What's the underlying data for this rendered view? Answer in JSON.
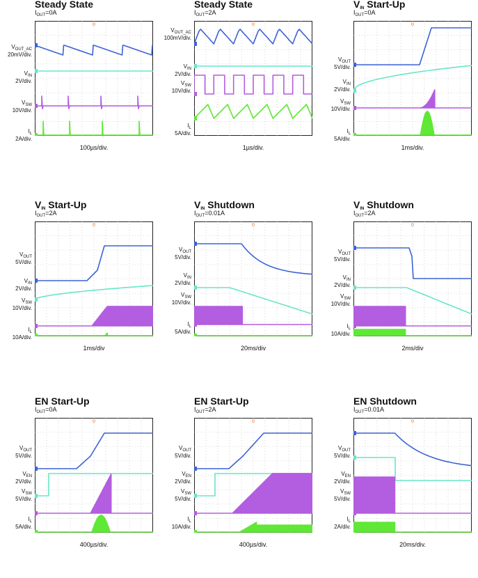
{
  "colors": {
    "vout": "#3c63d6",
    "vin": "#66e6c8",
    "vsw": "#b35de0",
    "il": "#5fe835",
    "grid": "#b8b8b8",
    "trigger": "#e8742a"
  },
  "panels": [
    {
      "title": "Steady State",
      "subtitle": "I<sub>OUT</sub>=0A",
      "xlabel": "100µs/div.",
      "channels": [
        {
          "name": "V<sub>OUT_AC</sub>",
          "scale": "20mV/div.",
          "ch": "vout"
        },
        {
          "name": "V<sub>IN</sub>",
          "scale": "2V/div.",
          "ch": "vin"
        },
        {
          "name": "V<sub>SW</sub>",
          "scale": "10V/div.",
          "ch": "vsw"
        },
        {
          "name": "I<sub>L</sub>",
          "scale": "2A/div.",
          "ch": "il"
        }
      ]
    },
    {
      "title": "Steady State",
      "subtitle": "I<sub>OUT</sub>=2A",
      "xlabel": "1µs/div.",
      "channels": [
        {
          "name": "V<sub>OUT_AC</sub>",
          "scale": "100mV/div.",
          "ch": "vout"
        },
        {
          "name": "V<sub>IN</sub>",
          "scale": "2V/div.",
          "ch": "vin"
        },
        {
          "name": "V<sub>SW</sub>",
          "scale": "10V/div.",
          "ch": "vsw"
        },
        {
          "name": "I<sub>L</sub>",
          "scale": "5A/div.",
          "ch": "il"
        }
      ]
    },
    {
      "title": "V<sub>IN</sub> Start-Up",
      "subtitle": "I<sub>OUT</sub>=0A",
      "xlabel": "1ms/div.",
      "channels": [
        {
          "name": "V<sub>OUT</sub>",
          "scale": "5V/div.",
          "ch": "vout"
        },
        {
          "name": "V<sub>IN</sub>",
          "scale": "2V/div.",
          "ch": "vin"
        },
        {
          "name": "V<sub>SW</sub>",
          "scale": "10V/div.",
          "ch": "vsw"
        },
        {
          "name": "I<sub>L</sub>",
          "scale": "5A/div.",
          "ch": "il"
        }
      ]
    },
    {
      "title": "V<sub>IN</sub> Start-Up",
      "subtitle": "I<sub>OUT</sub>=2A",
      "xlabel": "1ms/div",
      "channels": [
        {
          "name": "V<sub>OUT</sub>",
          "scale": "5V/div.",
          "ch": "vout"
        },
        {
          "name": "V<sub>IN</sub>",
          "scale": "2V/div.",
          "ch": "vin"
        },
        {
          "name": "V<sub>SW</sub>",
          "scale": "10V/div.",
          "ch": "vsw"
        },
        {
          "name": "I<sub>L</sub>",
          "scale": "10A/div.",
          "ch": "il"
        }
      ]
    },
    {
      "title": "V<sub>IN</sub> Shutdown",
      "subtitle": "I<sub>OUT</sub>=0.01A",
      "xlabel": "20ms/div",
      "channels": [
        {
          "name": "V<sub>OUT</sub>",
          "scale": "5V/div.",
          "ch": "vout"
        },
        {
          "name": "V<sub>IN</sub>",
          "scale": "2V/div.",
          "ch": "vin"
        },
        {
          "name": "V<sub>SW</sub>",
          "scale": "10V/div.",
          "ch": "vsw"
        },
        {
          "name": "I<sub>L</sub>",
          "scale": "5A/div.",
          "ch": "il"
        }
      ]
    },
    {
      "title": "V<sub>IN</sub> Shutdown",
      "subtitle": "I<sub>OUT</sub>=2A",
      "xlabel": "2ms/div",
      "channels": [
        {
          "name": "V<sub>OUT</sub>",
          "scale": "5V/div.",
          "ch": "vout"
        },
        {
          "name": "V<sub>IN</sub>",
          "scale": "2V/div.",
          "ch": "vin"
        },
        {
          "name": "V<sub>SW</sub>",
          "scale": "10V/div.",
          "ch": "vsw"
        },
        {
          "name": "I<sub>L</sub>",
          "scale": "10A/div.",
          "ch": "il"
        }
      ]
    },
    {
      "title": "EN Start-Up",
      "subtitle": "I<sub>OUT</sub>=0A",
      "xlabel": "400µs/div.",
      "channels": [
        {
          "name": "V<sub>OUT</sub>",
          "scale": "5V/div.",
          "ch": "vout"
        },
        {
          "name": "V<sub>EN</sub>",
          "scale": "2V/div.",
          "ch": "vin"
        },
        {
          "name": "V<sub>SW</sub>",
          "scale": "5V/div.",
          "ch": "vsw"
        },
        {
          "name": "I<sub>L</sub>",
          "scale": "5A/div.",
          "ch": "il"
        }
      ]
    },
    {
      "title": "EN Start-Up",
      "subtitle": "I<sub>OUT</sub>=2A",
      "xlabel": "400µs/div.",
      "channels": [
        {
          "name": "V<sub>OUT</sub>",
          "scale": "5V/div.",
          "ch": "vout"
        },
        {
          "name": "V<sub>EN</sub>",
          "scale": "2V/div.",
          "ch": "vin"
        },
        {
          "name": "V<sub>SW</sub>",
          "scale": "5V/div.",
          "ch": "vsw"
        },
        {
          "name": "I<sub>L</sub>",
          "scale": "10A/div.",
          "ch": "il"
        }
      ]
    },
    {
      "title": "EN Shutdown",
      "subtitle": "I<sub>OUT</sub>=0.01A",
      "xlabel": "20ms/div.",
      "channels": [
        {
          "name": "V<sub>OUT</sub>",
          "scale": "5V/div.",
          "ch": "vout"
        },
        {
          "name": "V<sub>EN</sub>",
          "scale": "2V/div.",
          "ch": "vin"
        },
        {
          "name": "V<sub>SW</sub>",
          "scale": "5V/div.",
          "ch": "vsw"
        },
        {
          "name": "I<sub>L</sub>",
          "scale": "2A/div.",
          "ch": "il"
        }
      ]
    }
  ],
  "chart_data": [
    {
      "type": "line",
      "title": "Steady State",
      "subtitle": "IOUT=0A",
      "xlabel": "100µs/div.",
      "divisions": {
        "x": 10,
        "y": 8
      },
      "series": [
        {
          "name": "VOUT_AC",
          "scale": "20mV/div.",
          "shape": "sawtooth"
        },
        {
          "name": "VIN",
          "scale": "2V/div.",
          "shape": "flat"
        },
        {
          "name": "VSW",
          "scale": "10V/div.",
          "shape": "sparse pulses"
        },
        {
          "name": "IL",
          "scale": "2A/div.",
          "shape": "sparse spikes"
        }
      ]
    },
    {
      "type": "line",
      "title": "Steady State",
      "subtitle": "IOUT=2A",
      "xlabel": "1µs/div.",
      "divisions": {
        "x": 10,
        "y": 8
      },
      "series": [
        {
          "name": "VOUT_AC",
          "scale": "100mV/div.",
          "shape": "ripple"
        },
        {
          "name": "VIN",
          "scale": "2V/div.",
          "shape": "flat"
        },
        {
          "name": "VSW",
          "scale": "10V/div.",
          "shape": "square wave"
        },
        {
          "name": "IL",
          "scale": "5A/div.",
          "shape": "triangle ripple"
        }
      ]
    },
    {
      "type": "line",
      "title": "VIN Start-Up",
      "subtitle": "IOUT=0A",
      "xlabel": "1ms/div.",
      "divisions": {
        "x": 10,
        "y": 8
      },
      "series": [
        {
          "name": "VOUT",
          "scale": "5V/div.",
          "shape": "ramp up"
        },
        {
          "name": "VIN",
          "scale": "2V/div.",
          "shape": "rising"
        },
        {
          "name": "VSW",
          "scale": "10V/div.",
          "shape": "switching burst"
        },
        {
          "name": "IL",
          "scale": "5A/div.",
          "shape": "inrush pulse"
        }
      ]
    },
    {
      "type": "line",
      "title": "VIN Start-Up",
      "subtitle": "IOUT=2A",
      "xlabel": "1ms/div",
      "divisions": {
        "x": 10,
        "y": 8
      },
      "series": [
        {
          "name": "VOUT",
          "scale": "5V/div.",
          "shape": "ramp up"
        },
        {
          "name": "VIN",
          "scale": "2V/div.",
          "shape": "rising"
        },
        {
          "name": "VSW",
          "scale": "10V/div.",
          "shape": "switching"
        },
        {
          "name": "IL",
          "scale": "10A/div.",
          "shape": "step up"
        }
      ]
    },
    {
      "type": "line",
      "title": "VIN Shutdown",
      "subtitle": "IOUT=0.01A",
      "xlabel": "20ms/div",
      "divisions": {
        "x": 10,
        "y": 8
      },
      "series": [
        {
          "name": "VOUT",
          "scale": "5V/div.",
          "shape": "decay"
        },
        {
          "name": "VIN",
          "scale": "2V/div.",
          "shape": "falling"
        },
        {
          "name": "VSW",
          "scale": "10V/div.",
          "shape": "bursts then stop"
        },
        {
          "name": "IL",
          "scale": "5A/div.",
          "shape": "bursts then stop"
        }
      ]
    },
    {
      "type": "line",
      "title": "VIN Shutdown",
      "subtitle": "IOUT=2A",
      "xlabel": "2ms/div",
      "divisions": {
        "x": 10,
        "y": 8
      },
      "series": [
        {
          "name": "VOUT",
          "scale": "5V/div.",
          "shape": "drop"
        },
        {
          "name": "VIN",
          "scale": "2V/div.",
          "shape": "falling"
        },
        {
          "name": "VSW",
          "scale": "10V/div.",
          "shape": "switching then stop"
        },
        {
          "name": "IL",
          "scale": "10A/div.",
          "shape": "switching then stop"
        }
      ]
    },
    {
      "type": "line",
      "title": "EN Start-Up",
      "subtitle": "IOUT=0A",
      "xlabel": "400µs/div.",
      "divisions": {
        "x": 10,
        "y": 8
      },
      "series": [
        {
          "name": "VOUT",
          "scale": "5V/div.",
          "shape": "ramp up"
        },
        {
          "name": "VEN",
          "scale": "2V/div.",
          "shape": "step up"
        },
        {
          "name": "VSW",
          "scale": "5V/div.",
          "shape": "switching burst"
        },
        {
          "name": "IL",
          "scale": "5A/div.",
          "shape": "inrush pulse"
        }
      ]
    },
    {
      "type": "line",
      "title": "EN Start-Up",
      "subtitle": "IOUT=2A",
      "xlabel": "400µs/div.",
      "divisions": {
        "x": 10,
        "y": 8
      },
      "series": [
        {
          "name": "VOUT",
          "scale": "5V/div.",
          "shape": "ramp up"
        },
        {
          "name": "VEN",
          "scale": "2V/div.",
          "shape": "step up"
        },
        {
          "name": "VSW",
          "scale": "5V/div.",
          "shape": "switching"
        },
        {
          "name": "IL",
          "scale": "10A/div.",
          "shape": "step up"
        }
      ]
    },
    {
      "type": "line",
      "title": "EN Shutdown",
      "subtitle": "IOUT=0.01A",
      "xlabel": "20ms/div.",
      "divisions": {
        "x": 10,
        "y": 8
      },
      "series": [
        {
          "name": "VOUT",
          "scale": "5V/div.",
          "shape": "decay"
        },
        {
          "name": "VEN",
          "scale": "2V/div.",
          "shape": "step down"
        },
        {
          "name": "VSW",
          "scale": "5V/div.",
          "shape": "bursts then stop"
        },
        {
          "name": "IL",
          "scale": "2A/div.",
          "shape": "bursts then stop"
        }
      ]
    }
  ]
}
